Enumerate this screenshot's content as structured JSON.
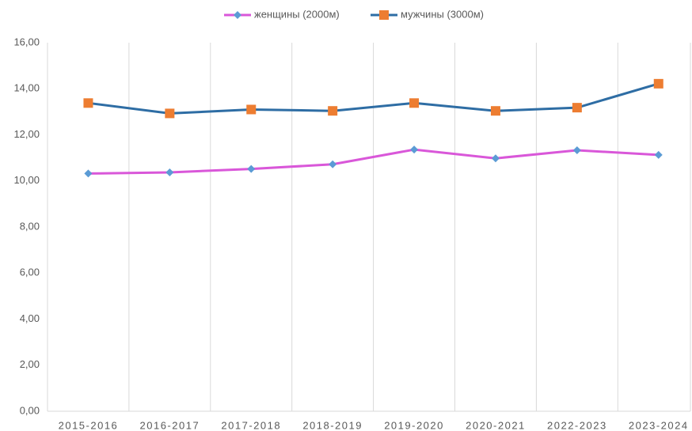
{
  "chart_data": {
    "type": "line",
    "categories": [
      "2015-2016",
      "2016-2017",
      "2017-2018",
      "2018-2019",
      "2019-2020",
      "2020-2021",
      "2022-2023",
      "2023-2024"
    ],
    "series": [
      {
        "name": "женщины (2000м)",
        "color": "#d957d9",
        "marker_color": "#5b9bd5",
        "marker": "diamond",
        "values": [
          10.32,
          10.37,
          10.52,
          10.72,
          11.36,
          10.98,
          11.33,
          11.13
        ]
      },
      {
        "name": "мужчины (3000м)",
        "color": "#2e6da4",
        "marker_color": "#ed7d31",
        "marker": "square",
        "values": [
          13.38,
          12.93,
          13.1,
          13.04,
          13.38,
          13.04,
          13.18,
          14.22
        ]
      }
    ],
    "ylim": [
      0,
      16
    ],
    "yticks": [
      {
        "value": 0,
        "label": "0,00"
      },
      {
        "value": 2,
        "label": "2,00"
      },
      {
        "value": 4,
        "label": "4,00"
      },
      {
        "value": 6,
        "label": "6,00"
      },
      {
        "value": 8,
        "label": "8,00"
      },
      {
        "value": 10,
        "label": "10,00"
      },
      {
        "value": 12,
        "label": "12,00"
      },
      {
        "value": 14,
        "label": "14,00"
      },
      {
        "value": 16,
        "label": "16,00"
      }
    ],
    "grid": "vertical",
    "legend": "top"
  }
}
